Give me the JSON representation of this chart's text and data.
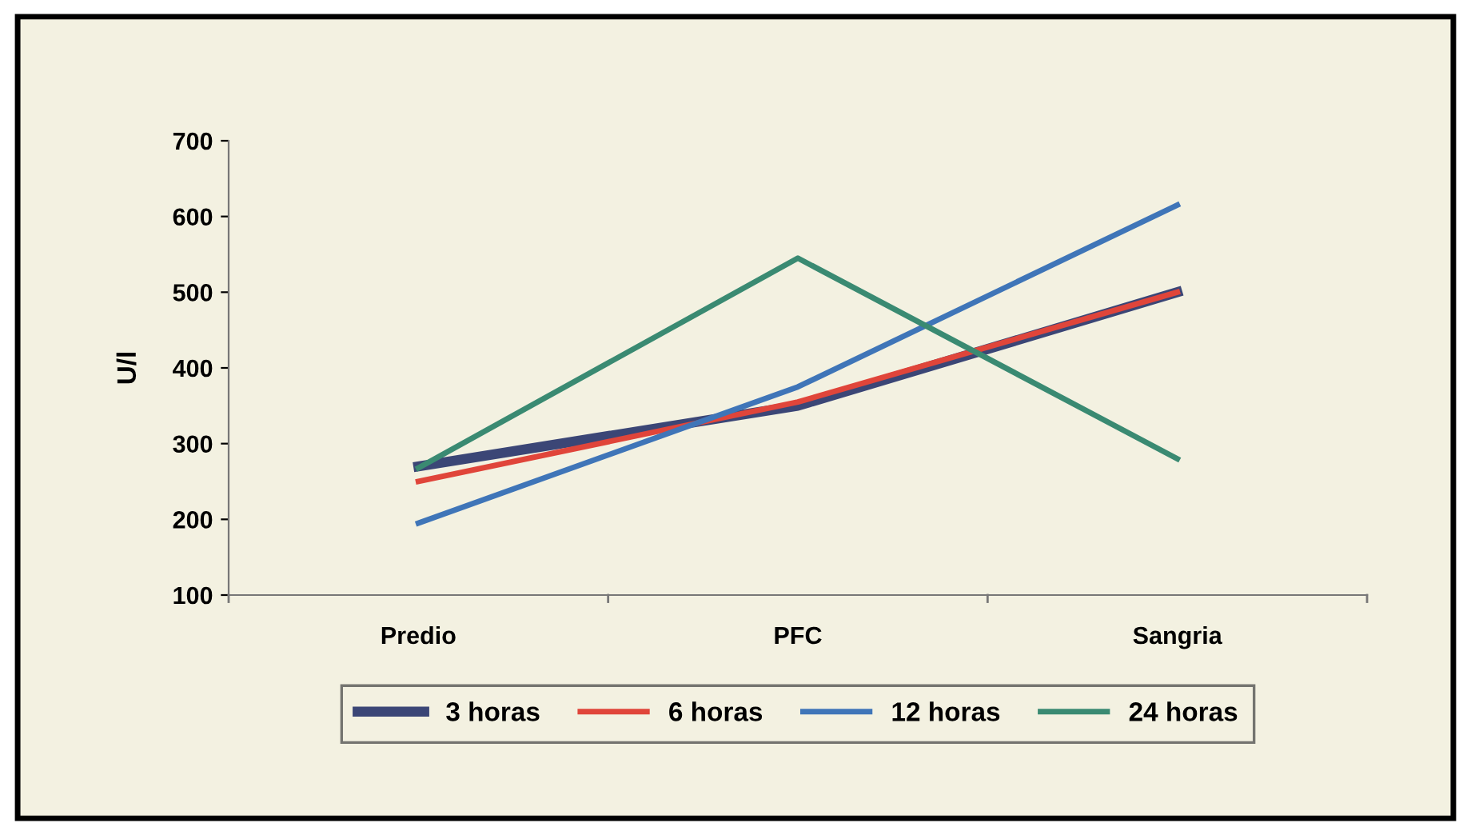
{
  "chart_data": {
    "type": "line",
    "ylabel": "U/l",
    "categories": [
      "Predio",
      "PFC",
      "Sangria"
    ],
    "series": [
      {
        "name": "3 horas",
        "color": "#3b4676",
        "values": [
          270,
          350,
          500
        ]
      },
      {
        "name": "6 horas",
        "color": "#e0453a",
        "values": [
          250,
          355,
          500
        ]
      },
      {
        "name": "12 horas",
        "color": "#3f75b8",
        "values": [
          195,
          375,
          615
        ]
      },
      {
        "name": "24 horas",
        "color": "#3a8a72",
        "values": [
          268,
          545,
          280
        ]
      }
    ],
    "ylim": [
      100,
      700
    ],
    "yticks": [
      100,
      200,
      300,
      400,
      500,
      600,
      700
    ],
    "grid": false,
    "legend": "bottom",
    "marker": "none",
    "line_style": "solid"
  }
}
